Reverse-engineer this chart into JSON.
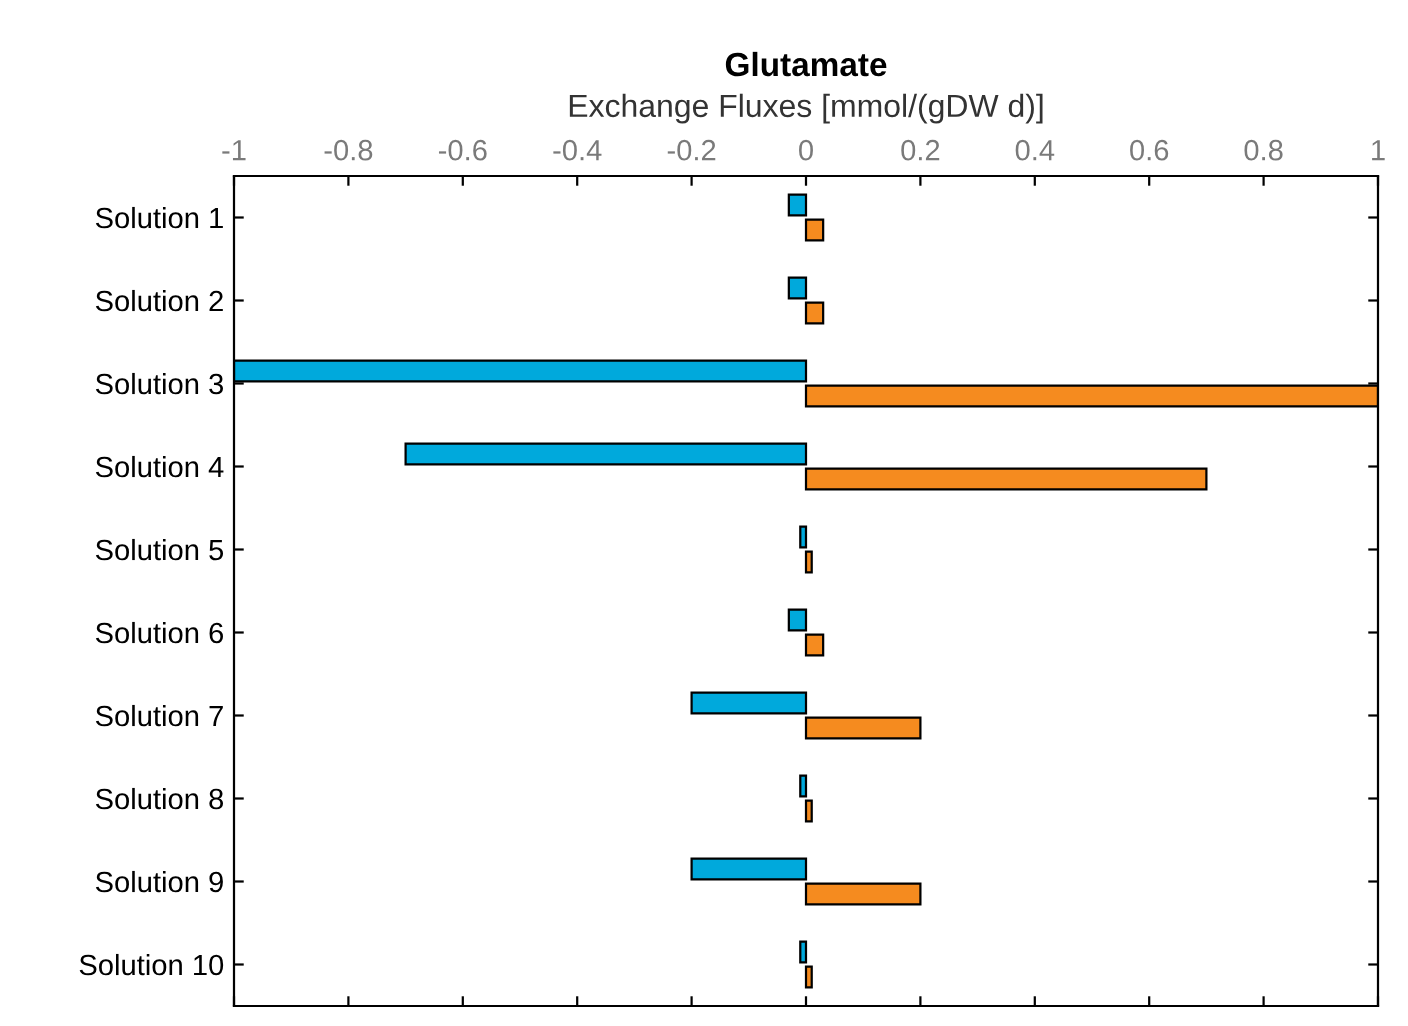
{
  "chart_data": {
    "type": "bar",
    "orientation": "horizontal",
    "title": "Glutamate",
    "xlabel": "Exchange Fluxes [mmol/(gDW d)]",
    "categories": [
      "Solution 1",
      "Solution 2",
      "Solution 3",
      "Solution 4",
      "Solution 5",
      "Solution 6",
      "Solution 7",
      "Solution 8",
      "Solution 9",
      "Solution 10"
    ],
    "series": [
      {
        "color": "#00a9dc",
        "values": [
          -0.03,
          -0.03,
          -1,
          -0.7,
          -0.01,
          -0.03,
          -0.2,
          -0.01,
          -0.2,
          -0.01
        ]
      },
      {
        "color": "#f58b1f",
        "values": [
          0.03,
          0.03,
          1,
          0.7,
          0.01,
          0.03,
          0.2,
          0.01,
          0.2,
          0.01
        ]
      }
    ],
    "xlim": [
      -1,
      1
    ],
    "xticks": [
      -1,
      -0.8,
      -0.6,
      -0.4,
      -0.2,
      0,
      0.2,
      0.4,
      0.6,
      0.8,
      1
    ],
    "grid": false,
    "legend": false
  }
}
